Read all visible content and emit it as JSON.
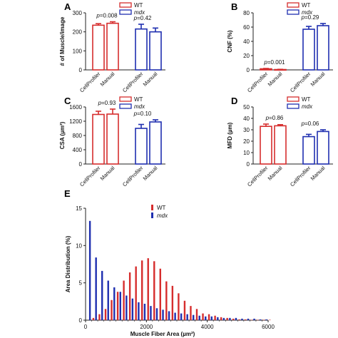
{
  "colors": {
    "wt": "#d62d2d",
    "mdx": "#1f2fb0",
    "axis": "#222222"
  },
  "chart_data": [
    {
      "panel": "A",
      "type": "bar",
      "ylabel": "# of Muscle/image",
      "ylim": [
        0,
        300
      ],
      "yticks": [
        0,
        100,
        200,
        300
      ],
      "categories": [
        "CellProfiler",
        "Manual",
        "CellProfiler",
        "Manual"
      ],
      "groups": [
        "WT",
        "WT",
        "mdx",
        "mdx"
      ],
      "values": [
        235,
        245,
        215,
        200
      ],
      "errors": [
        8,
        8,
        25,
        20
      ],
      "legend": [
        "WT",
        "mdx"
      ],
      "legend_position": "top",
      "pvalues": [
        {
          "text": "p=0.008",
          "group": 0
        },
        {
          "text": "p=0.42",
          "group": 1
        }
      ]
    },
    {
      "panel": "B",
      "type": "bar",
      "ylabel": "CNF (%)",
      "ylim": [
        0,
        80
      ],
      "yticks": [
        0,
        20,
        40,
        60,
        80
      ],
      "categories": [
        "CellProfiler",
        "Manual",
        "CellProfiler",
        "Manual"
      ],
      "groups": [
        "WT",
        "WT",
        "mdx",
        "mdx"
      ],
      "values": [
        1.5,
        0.5,
        57,
        62
      ],
      "errors": [
        0.5,
        0.3,
        4,
        3
      ],
      "legend": [
        "WT",
        "mdx"
      ],
      "legend_position": "top",
      "pvalues": [
        {
          "text": "p=0.001",
          "group": 0
        },
        {
          "text": "p=0.29",
          "group": 1
        }
      ]
    },
    {
      "panel": "C",
      "type": "bar",
      "ylabel": "CSA (µm²)",
      "ylim": [
        0,
        1600
      ],
      "yticks": [
        0,
        400,
        800,
        1200,
        1600
      ],
      "categories": [
        "CellProfiler",
        "Manual",
        "CellProfiler",
        "Manual"
      ],
      "groups": [
        "WT",
        "WT",
        "mdx",
        "mdx"
      ],
      "values": [
        1390,
        1400,
        1000,
        1180
      ],
      "errors": [
        90,
        140,
        110,
        60
      ],
      "legend": [
        "WT",
        "mdx"
      ],
      "legend_position": "top",
      "pvalues": [
        {
          "text": "p=0.93",
          "group": 0
        },
        {
          "text": "p=0.10",
          "group": 1
        }
      ]
    },
    {
      "panel": "D",
      "type": "bar",
      "ylabel": "MFD (µm)",
      "ylim": [
        0,
        50
      ],
      "yticks": [
        0,
        10,
        20,
        30,
        40,
        50
      ],
      "categories": [
        "CellProfiler",
        "Manual",
        "CellProfiler",
        "Manual"
      ],
      "groups": [
        "WT",
        "WT",
        "mdx",
        "mdx"
      ],
      "values": [
        33,
        33.5,
        24,
        28.5
      ],
      "errors": [
        2,
        1,
        2,
        1.5
      ],
      "legend": [
        "WT",
        "mdx"
      ],
      "legend_position": "top",
      "pvalues": [
        {
          "text": "p=0.86",
          "group": 0
        },
        {
          "text": "p=0.06",
          "group": 1
        }
      ]
    },
    {
      "panel": "E",
      "type": "bar",
      "xlabel": "Muscle Fiber Area (µm²)",
      "ylabel": "Area Distribution (%)",
      "xlim": [
        0,
        6000
      ],
      "ylim": [
        0,
        15
      ],
      "xticks": [
        0,
        2000,
        4000,
        6000
      ],
      "yticks": [
        0,
        5,
        10,
        15
      ],
      "legend": [
        "WT",
        "mdx"
      ],
      "legend_position": "top-center",
      "series": [
        {
          "name": "WT",
          "x": [
            200,
            400,
            600,
            800,
            1000,
            1200,
            1400,
            1600,
            1800,
            2000,
            2200,
            2400,
            2600,
            2800,
            3000,
            3200,
            3400,
            3600,
            3800,
            4000,
            4200,
            4400,
            4600,
            4800,
            5000,
            5200,
            5400,
            5600,
            5800,
            6000
          ],
          "values": [
            0.3,
            0.8,
            1.5,
            2.7,
            3.8,
            5.3,
            6.4,
            7.2,
            8.0,
            8.3,
            7.9,
            6.9,
            5.2,
            4.6,
            3.6,
            2.6,
            1.9,
            1.5,
            0.9,
            0.8,
            0.6,
            0.4,
            0.3,
            0.2,
            0.1,
            0.1,
            0.05,
            0.05,
            0.05,
            0.05
          ]
        },
        {
          "name": "mdx",
          "x": [
            200,
            400,
            600,
            800,
            1000,
            1200,
            1400,
            1600,
            1800,
            2000,
            2200,
            2400,
            2600,
            2800,
            3000,
            3200,
            3400,
            3600,
            3800,
            4000,
            4200,
            4400,
            4600,
            4800,
            5000,
            5200,
            5400,
            5600,
            5800,
            6000
          ],
          "values": [
            13.3,
            8.4,
            6.6,
            5.3,
            4.4,
            3.8,
            3.3,
            2.9,
            2.4,
            2.2,
            1.9,
            1.6,
            1.4,
            1.2,
            1.0,
            0.9,
            0.8,
            0.7,
            0.6,
            0.5,
            0.5,
            0.4,
            0.3,
            0.3,
            0.3,
            0.2,
            0.2,
            0.2,
            0.1,
            0.1
          ]
        }
      ]
    }
  ]
}
